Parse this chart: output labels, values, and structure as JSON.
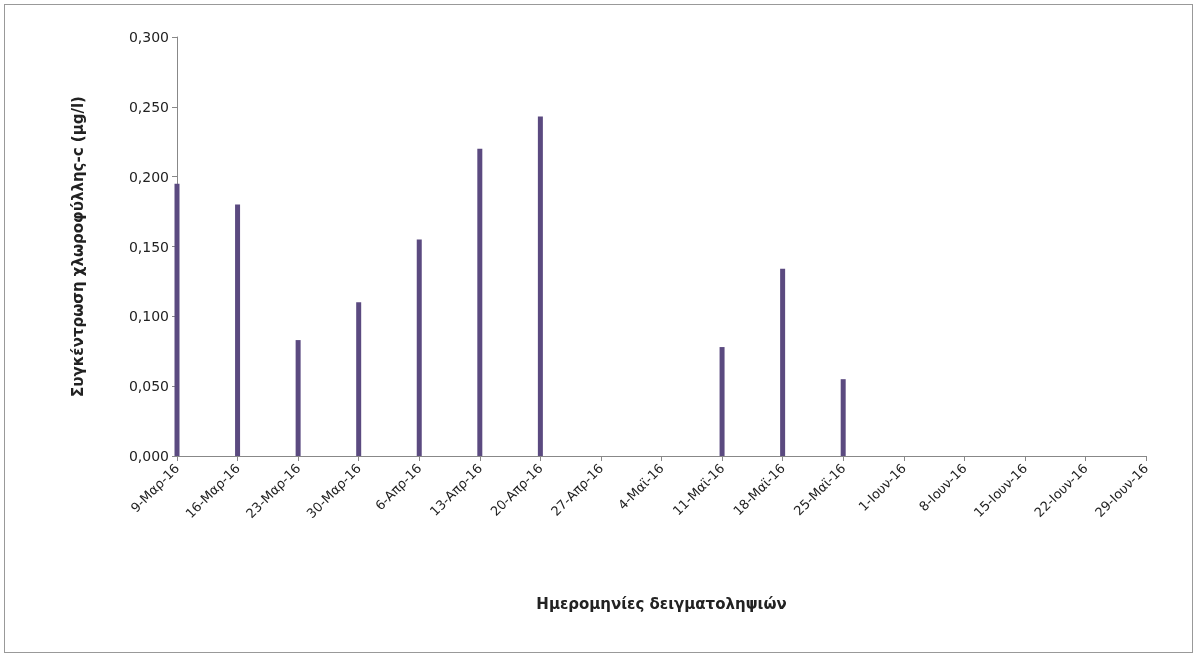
{
  "chart_data": {
    "type": "bar",
    "xlabel": "Ημερομηνίες δειγματοληψιών",
    "ylabel": "Συγκέντρωση χλωροφύλλης-c (μg/l)",
    "categories": [
      "9-Μαρ-16",
      "16-Μαρ-16",
      "23-Μαρ-16",
      "30-Μαρ-16",
      "6-Απρ-16",
      "13-Απρ-16",
      "20-Απρ-16",
      "27-Απρ-16",
      "4-Μαϊ-16",
      "11-Μαϊ-16",
      "18-Μαϊ-16",
      "25-Μαϊ-16",
      "1-Ιουν-16",
      "8-Ιουν-16",
      "15-Ιουν-16",
      "22-Ιουν-16",
      "29-Ιουν-16"
    ],
    "values": [
      0.195,
      0.18,
      0.083,
      0.11,
      0.155,
      0.22,
      0.243,
      null,
      null,
      0.078,
      0.134,
      0.055,
      null,
      null,
      null,
      null,
      null
    ],
    "color": "#5b4a80",
    "ylim": [
      0,
      0.3
    ],
    "yticks": [
      {
        "value": 0,
        "label": "0,000"
      },
      {
        "value": 0.05,
        "label": "0,050"
      },
      {
        "value": 0.1,
        "label": "0,100"
      },
      {
        "value": 0.15,
        "label": "0,150"
      },
      {
        "value": 0.2,
        "label": "0,200"
      },
      {
        "value": 0.25,
        "label": "0,250"
      },
      {
        "value": 0.3,
        "label": "0,300"
      }
    ],
    "grid": false
  }
}
